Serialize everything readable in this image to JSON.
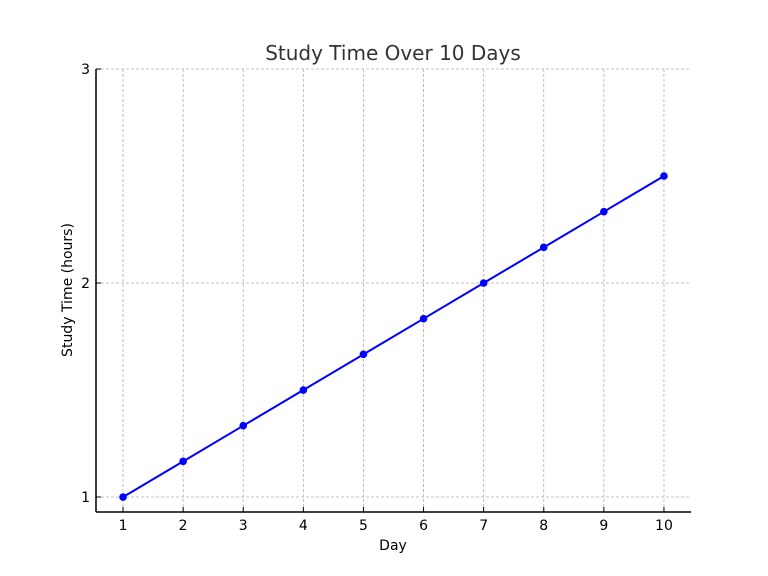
{
  "chart_data": {
    "type": "line",
    "title": "Study Time Over 10 Days",
    "xlabel": "Day",
    "ylabel": "Study Time (hours)",
    "x": [
      1,
      2,
      3,
      4,
      5,
      6,
      7,
      8,
      9,
      10
    ],
    "series": [
      {
        "values": [
          1.0,
          1.1667,
          1.3333,
          1.5,
          1.6667,
          1.8333,
          2.0,
          2.1667,
          2.3333,
          2.5
        ],
        "color": "#0000ff",
        "marker": "circle"
      }
    ],
    "xticks": [
      "1",
      "2",
      "3",
      "4",
      "5",
      "6",
      "7",
      "8",
      "9",
      "10"
    ],
    "yticks": [
      "1",
      "2",
      "3"
    ],
    "xlim": [
      0.55,
      10.45
    ],
    "ylim": [
      0.93,
      3.0
    ],
    "grid": true,
    "grid_style": "dashed",
    "grid_color": "#b0b0b0"
  }
}
